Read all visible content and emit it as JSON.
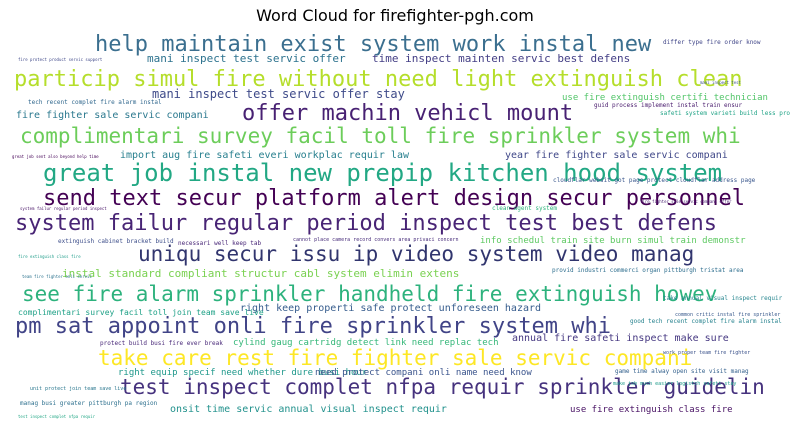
{
  "chart_data": {
    "type": "wordcloud",
    "title": "Word Cloud for firefighter-pgh.com",
    "phrases": [
      {
        "text": "help maintain exist system work instal new",
        "weight": 22,
        "color": "#3b6f8f"
      },
      {
        "text": "particip simul fire without need light extinguish clean",
        "weight": 22,
        "color": "#b5de2b"
      },
      {
        "text": "offer machin vehicl mount",
        "weight": 22,
        "color": "#482173"
      },
      {
        "text": "complimentari survey facil toll fire sprinkler system whi",
        "weight": 21,
        "color": "#6ccd5a"
      },
      {
        "text": "great job instal new prepip kitchen hood system",
        "weight": 24,
        "color": "#22a884"
      },
      {
        "text": "send text secur platform alert design secur personnel",
        "weight": 22,
        "color": "#440154"
      },
      {
        "text": "system failur regular period inspect test best defens",
        "weight": 22,
        "color": "#482475"
      },
      {
        "text": "uniqu secur issu ip video system video manag",
        "weight": 21,
        "color": "#31356e"
      },
      {
        "text": "see fire alarm sprinkler handheld fire extinguish howev",
        "weight": 21,
        "color": "#2db27d"
      },
      {
        "text": "pm sat appoint onli fire sprinkler system whi",
        "weight": 22,
        "color": "#414487"
      },
      {
        "text": "take care rest fire fighter sale servic compani",
        "weight": 21,
        "color": "#fde725"
      },
      {
        "text": "test inspect complet nfpa requir sprinkler guidelin",
        "weight": 21,
        "color": "#46327e"
      },
      {
        "text": "mani inspect test servic offer stay",
        "weight": 12,
        "color": "#3e4a89"
      },
      {
        "text": "mani inspect test servic offer",
        "weight": 11,
        "color": "#2c728e"
      },
      {
        "text": "time inspect mainten servic best defens",
        "weight": 11,
        "color": "#433e85"
      },
      {
        "text": "fire fighter sale servic compani",
        "weight": 10,
        "color": "#2a788e"
      },
      {
        "text": "use fire extinguish certifi technician",
        "weight": 9,
        "color": "#52c569"
      },
      {
        "text": "import aug fire safeti everi workplac requir law",
        "weight": 10,
        "color": "#277f8e"
      },
      {
        "text": "year fire fighter sale servic compani",
        "weight": 10,
        "color": "#3f4788"
      },
      {
        "text": "instal standard compliant structur cabl system elimin extens",
        "weight": 11,
        "color": "#7ad151"
      },
      {
        "text": "info schedul train site burn simul train demonstr",
        "weight": 9,
        "color": "#5ec962"
      },
      {
        "text": "right keep properti safe protect unforeseen hazard",
        "weight": 10,
        "color": "#365c8d"
      },
      {
        "text": "complimentari survey facil toll join team save live",
        "weight": 8,
        "color": "#1fa187"
      },
      {
        "text": "cylind gaug cartridg detect link need replac tech",
        "weight": 9,
        "color": "#35b779"
      },
      {
        "text": "annual fire safeti inspect make sure",
        "weight": 10,
        "color": "#453781"
      },
      {
        "text": "right equip specif need whether dure busi hour",
        "weight": 9,
        "color": "#1f988b"
      },
      {
        "text": "need protect compani onli name need know",
        "weight": 9,
        "color": "#3a548c"
      },
      {
        "text": "onsit time servic annual visual inspect requir",
        "weight": 10,
        "color": "#21918c"
      },
      {
        "text": "use fire extinguish class fire",
        "weight": 9,
        "color": "#471063"
      },
      {
        "text": "differ type fire order know",
        "weight": 6,
        "color": "#404688"
      },
      {
        "text": "tech recent complet fire alarm instal",
        "weight": 6,
        "color": "#31688e"
      },
      {
        "text": "guid process implement instal train ensur",
        "weight": 6,
        "color": "#481a6c"
      },
      {
        "text": "safeti system varieti build less properti",
        "weight": 6,
        "color": "#20a386"
      },
      {
        "text": "cloudflar websit got page protect cloudflar address page",
        "weight": 6,
        "color": "#39568c"
      },
      {
        "text": "clean agent system",
        "weight": 6,
        "color": "#2fb47c"
      },
      {
        "text": "extinguish cabinet bracket build",
        "weight": 6,
        "color": "#3d4e8a"
      },
      {
        "text": "necessari well keep tab",
        "weight": 6,
        "color": "#482677"
      },
      {
        "text": "cannot place camera record convers area privaci concern",
        "weight": 5,
        "color": "#472c7a"
      },
      {
        "text": "provid industri commerci organ pittburgh tristat area",
        "weight": 6,
        "color": "#2e6e8e"
      },
      {
        "text": "take annual visual inspect requir",
        "weight": 6,
        "color": "#25858e"
      },
      {
        "text": "common critic instal fire sprinkler",
        "weight": 5,
        "color": "#38598c"
      },
      {
        "text": "good tech recent complet fire alarm instal",
        "weight": 6,
        "color": "#26828e"
      },
      {
        "text": "protect build busi fire ever break",
        "weight": 6,
        "color": "#482878"
      },
      {
        "text": "work proper team fire fighter",
        "weight": 5,
        "color": "#3b528b"
      },
      {
        "text": "game time alway open site visit manag",
        "weight": 6,
        "color": "#34618d"
      },
      {
        "text": "manag busi greater pittburgh pa region",
        "weight": 6,
        "color": "#2d708e"
      },
      {
        "text": "make job much easier logistch safeti stay",
        "weight": 5,
        "color": "#1e9b8a"
      },
      {
        "text": "unit protect join team save live",
        "weight": 5,
        "color": "#2a778e"
      },
      {
        "text": "great job sent also beyond help time",
        "weight": 4,
        "color": "#440256"
      },
      {
        "text": "fire protect product servic support",
        "weight": 4,
        "color": "#3f4889"
      },
      {
        "text": "fire extinguish class fire",
        "weight": 4,
        "color": "#1e9c89"
      },
      {
        "text": "system failur regular period inspect",
        "weight": 4,
        "color": "#481467"
      },
      {
        "text": "team fire fighter onli servic",
        "weight": 4,
        "color": "#2c738e"
      },
      {
        "text": "fire fighter sale servic compani offer",
        "weight": 4,
        "color": "#482071"
      },
      {
        "text": "test inspect complet nfpa requir",
        "weight": 4,
        "color": "#22a785"
      },
      {
        "text": "mani inspect test",
        "weight": 4,
        "color": "#3b528b"
      }
    ]
  }
}
